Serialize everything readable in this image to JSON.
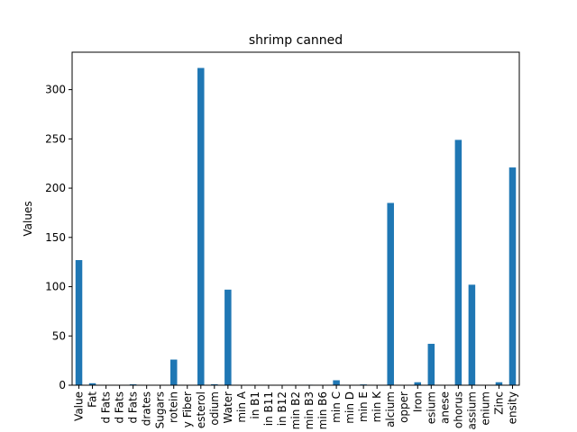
{
  "chart_data": {
    "type": "bar",
    "title": "shrimp canned",
    "xlabel": "",
    "ylabel": "Values",
    "ylim": [
      0,
      338
    ],
    "yticks": [
      0,
      50,
      100,
      150,
      200,
      250,
      300
    ],
    "grid": false,
    "legend": "none",
    "bar_color": "#1f77b4",
    "categories": [
      "Value",
      "Fat",
      "d Fats",
      "d Fats",
      "d Fats",
      "drates",
      "Sugars",
      "rotein",
      "y Fiber",
      "esterol",
      "odium",
      "Water",
      "min A",
      "in B1",
      "in B11",
      "in B12",
      "min B2",
      "min B3",
      "min B6",
      "min C",
      "min D",
      "min E",
      "min K",
      "alcium",
      "opper",
      "Iron",
      "esium",
      "anese",
      "ohorus",
      "assium",
      "enium",
      "Zinc",
      "ensity"
    ],
    "values": [
      127,
      2,
      0.3,
      0.3,
      0.9,
      0,
      0,
      26,
      0,
      322,
      1,
      97,
      0,
      0,
      0,
      0,
      0,
      0.5,
      0,
      5,
      0,
      0.8,
      0,
      185,
      0.3,
      3,
      42,
      0,
      249,
      102,
      0.4,
      3,
      221
    ]
  }
}
